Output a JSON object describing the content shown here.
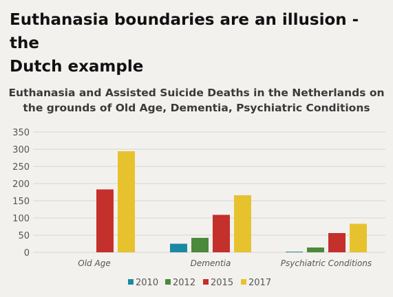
{
  "headline": {
    "line1": "Euthanasia boundaries are an illusion - the",
    "line2": "Dutch example"
  },
  "chart_data": {
    "type": "bar",
    "title_lines": [
      "Euthanasia and Assisted Suicide Deaths in the Netherlands on",
      "the grounds of Old Age, Dementia, Psychiatric Conditions"
    ],
    "categories": [
      "Old Age",
      "Dementia",
      "Psychiatric Conditions"
    ],
    "series": [
      {
        "name": "2010",
        "color": "#1a8aa3",
        "values": [
          null,
          25,
          2
        ]
      },
      {
        "name": "2012",
        "color": "#4a8a3a",
        "values": [
          null,
          42,
          14
        ]
      },
      {
        "name": "2015",
        "color": "#c4302b",
        "values": [
          183,
          109,
          56
        ]
      },
      {
        "name": "2017",
        "color": "#e6c32e",
        "values": [
          294,
          166,
          83
        ]
      }
    ],
    "yticks": [
      0,
      50,
      100,
      150,
      200,
      250,
      300,
      350
    ],
    "ylim": [
      0,
      350
    ],
    "grid": true,
    "legend_position": "bottom"
  }
}
